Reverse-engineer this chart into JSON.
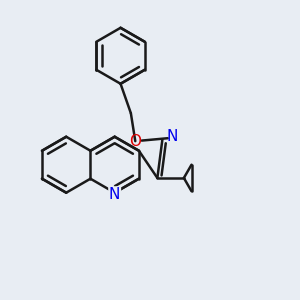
{
  "bg_color": "#e8edf3",
  "bond_color": "#1a1a1a",
  "n_color": "#0000ee",
  "o_color": "#dd0000",
  "bond_width": 1.8,
  "figsize": [
    3.0,
    3.0
  ],
  "dpi": 100,
  "xlim": [
    0,
    10
  ],
  "ylim": [
    0,
    10
  ]
}
